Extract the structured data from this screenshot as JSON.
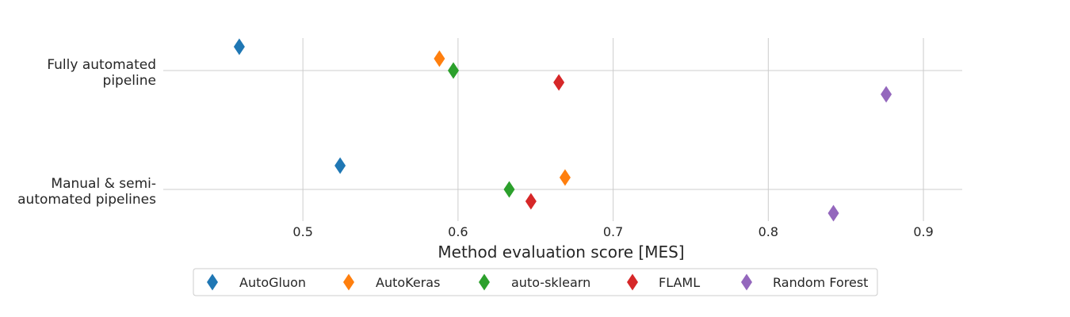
{
  "chart_data": {
    "type": "scatter",
    "title": "",
    "xlabel": "Method evaluation score [MES]",
    "ylabel": "",
    "xlim": [
      0.41,
      0.925
    ],
    "xticks": [
      "0.5",
      "0.6",
      "0.7",
      "0.8",
      "0.9"
    ],
    "grid": true,
    "legend_position": "bottom-center",
    "categories": [
      [
        "Fully automated",
        "pipeline"
      ],
      [
        "Manual & semi-",
        "automated pipelines"
      ]
    ],
    "series": [
      {
        "name": "AutoGluon",
        "color": "#1f77b4",
        "values": [
          0.459,
          0.524
        ],
        "offset": [
          0.2,
          0.2
        ]
      },
      {
        "name": "AutoKeras",
        "color": "#ff7f0e",
        "values": [
          0.588,
          0.669
        ],
        "offset": [
          0.1,
          0.1
        ]
      },
      {
        "name": "auto-sklearn",
        "color": "#2ca02c",
        "values": [
          0.597,
          0.633
        ],
        "offset": [
          0.0,
          0.0
        ]
      },
      {
        "name": "FLAML",
        "color": "#d62728",
        "values": [
          0.665,
          0.647
        ],
        "offset": [
          -0.1,
          -0.1
        ]
      },
      {
        "name": "Random Forest",
        "color": "#9467bd",
        "values": [
          0.876,
          0.842
        ],
        "offset": [
          -0.2,
          -0.2
        ]
      }
    ]
  }
}
